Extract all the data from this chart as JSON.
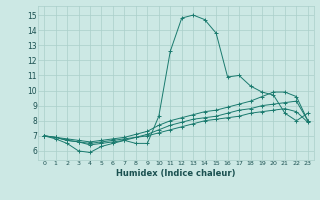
{
  "xlabel": "Humidex (Indice chaleur)",
  "x_ticks": [
    0,
    1,
    2,
    3,
    4,
    5,
    6,
    7,
    8,
    9,
    10,
    11,
    12,
    13,
    14,
    15,
    16,
    17,
    18,
    19,
    20,
    21,
    22,
    23
  ],
  "y_ticks": [
    6,
    7,
    8,
    9,
    10,
    11,
    12,
    13,
    14,
    15
  ],
  "xlim": [
    -0.5,
    23.5
  ],
  "ylim": [
    5.4,
    15.6
  ],
  "line_color": "#1a7a6e",
  "bg_color": "#cce8e4",
  "grid_color": "#aacfca",
  "series": [
    {
      "x": [
        0,
        1,
        2,
        3,
        4,
        5,
        6,
        7,
        8,
        9,
        10,
        11,
        12,
        13,
        14,
        15,
        16,
        17,
        18,
        19,
        20,
        21,
        22,
        23
      ],
      "y": [
        7.0,
        6.8,
        6.5,
        6.0,
        5.9,
        6.3,
        6.5,
        6.7,
        6.5,
        6.5,
        8.3,
        12.6,
        14.8,
        15.0,
        14.7,
        13.8,
        10.9,
        11.0,
        10.3,
        9.9,
        9.7,
        8.5,
        8.0,
        8.5
      ]
    },
    {
      "x": [
        0,
        1,
        2,
        3,
        4,
        5,
        6,
        7,
        8,
        9,
        10,
        11,
        12,
        13,
        14,
        15,
        16,
        17,
        18,
        19,
        20,
        21,
        22,
        23
      ],
      "y": [
        7.0,
        6.9,
        6.8,
        6.7,
        6.6,
        6.7,
        6.8,
        6.9,
        7.1,
        7.3,
        7.7,
        8.0,
        8.2,
        8.4,
        8.6,
        8.7,
        8.9,
        9.1,
        9.3,
        9.6,
        9.9,
        9.9,
        9.6,
        8.0
      ]
    },
    {
      "x": [
        0,
        1,
        2,
        3,
        4,
        5,
        6,
        7,
        8,
        9,
        10,
        11,
        12,
        13,
        14,
        15,
        16,
        17,
        18,
        19,
        20,
        21,
        22,
        23
      ],
      "y": [
        7.0,
        6.9,
        6.7,
        6.6,
        6.5,
        6.6,
        6.7,
        6.8,
        6.9,
        7.1,
        7.4,
        7.7,
        7.9,
        8.1,
        8.2,
        8.3,
        8.5,
        8.7,
        8.8,
        9.0,
        9.1,
        9.2,
        9.3,
        8.0
      ]
    },
    {
      "x": [
        0,
        1,
        2,
        3,
        4,
        5,
        6,
        7,
        8,
        9,
        10,
        11,
        12,
        13,
        14,
        15,
        16,
        17,
        18,
        19,
        20,
        21,
        22,
        23
      ],
      "y": [
        7.0,
        6.9,
        6.7,
        6.6,
        6.4,
        6.5,
        6.6,
        6.7,
        6.9,
        7.0,
        7.2,
        7.4,
        7.6,
        7.8,
        8.0,
        8.1,
        8.2,
        8.3,
        8.5,
        8.6,
        8.7,
        8.8,
        8.6,
        7.9
      ]
    }
  ]
}
